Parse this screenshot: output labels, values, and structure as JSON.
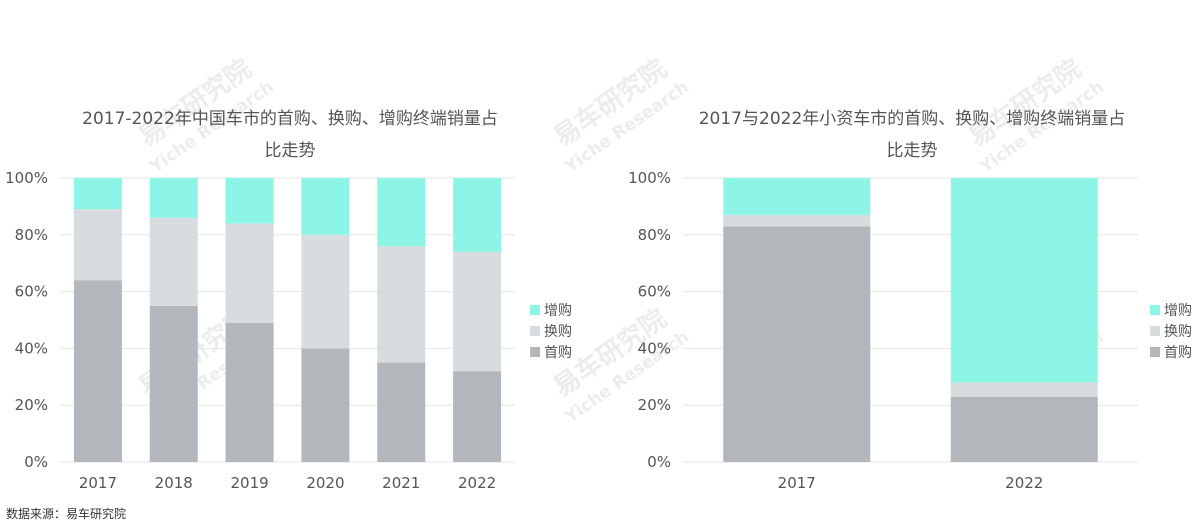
{
  "chart_data": [
    {
      "type": "bar",
      "stacked": true,
      "title_lines": [
        "2017-2022年中国车市的首购、换购、增购终端销量占",
        "比走势"
      ],
      "categories": [
        "2017",
        "2018",
        "2019",
        "2020",
        "2021",
        "2022"
      ],
      "series": [
        {
          "name": "首购",
          "values": [
            64,
            55,
            49,
            40,
            35,
            32
          ],
          "color": "#b3b6ba"
        },
        {
          "name": "换购",
          "values": [
            25,
            31,
            35,
            40,
            41,
            42
          ],
          "color": "#d9dcdf"
        },
        {
          "name": "增购",
          "values": [
            11,
            14,
            16,
            20,
            24,
            26
          ],
          "color": "#8cf5e5"
        }
      ],
      "legend_order": [
        "增购",
        "换购",
        "首购"
      ],
      "yticks": [
        "0%",
        "20%",
        "40%",
        "60%",
        "80%",
        "100%"
      ],
      "ylim": [
        0,
        100
      ],
      "grid": true,
      "legend_position": "right"
    },
    {
      "type": "bar",
      "stacked": true,
      "title_lines": [
        "2017与2022年小资车市的首购、换购、增购终端销量占",
        "比走势"
      ],
      "categories": [
        "2017",
        "2022"
      ],
      "series": [
        {
          "name": "首购",
          "values": [
            83,
            23
          ],
          "color": "#b3b6ba"
        },
        {
          "name": "换购",
          "values": [
            4,
            5
          ],
          "color": "#d9dcdf"
        },
        {
          "name": "增购",
          "values": [
            13,
            72
          ],
          "color": "#8cf5e5"
        }
      ],
      "legend_order": [
        "增购",
        "换购",
        "首购"
      ],
      "yticks": [
        "0%",
        "20%",
        "40%",
        "60%",
        "80%",
        "100%"
      ],
      "ylim": [
        0,
        100
      ],
      "grid": true,
      "legend_position": "right"
    }
  ],
  "source_text": "数据来源：易车研究院",
  "watermark": {
    "main": "易车研究院",
    "sub": "Yiche Research"
  }
}
